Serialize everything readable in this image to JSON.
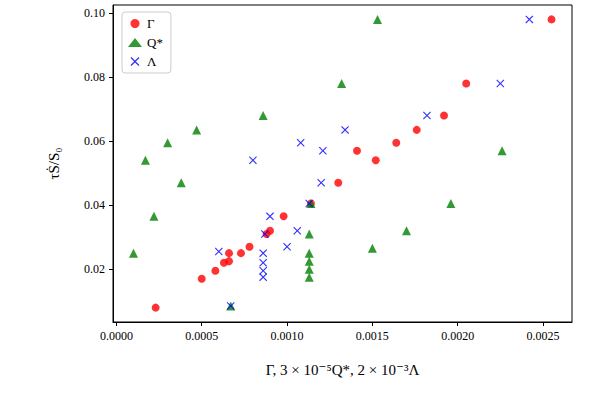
{
  "chart_data": {
    "type": "scatter",
    "x_label": "Γ, 3 × 10⁻⁵Q*, 2 × 10⁻³Λ",
    "y_label": "τṠ/S₀",
    "xlim": [
      -2e-05,
      0.00267
    ],
    "ylim": [
      0.0035,
      0.1025
    ],
    "xticks": [
      {
        "value": 0,
        "label": "0.0000"
      },
      {
        "value": 0.0005,
        "label": "0.0005"
      },
      {
        "value": 0.001,
        "label": "0.0010"
      },
      {
        "value": 0.0015,
        "label": "0.0015"
      },
      {
        "value": 0.002,
        "label": "0.0020"
      },
      {
        "value": 0.0025,
        "label": "0.0025"
      }
    ],
    "yticks": [
      0.02,
      0.04,
      0.06,
      0.08,
      {
        "value": 0.1,
        "label": "0.10"
      }
    ],
    "grid": false,
    "legend": "upper left",
    "series": [
      {
        "name": "Γ",
        "color": "#ff0000",
        "marker": "circle",
        "x": [
          0.00023,
          0.0005,
          0.00058,
          0.00063,
          0.00066,
          0.00066,
          0.00073,
          0.00078,
          0.00088,
          0.0009,
          0.00098,
          0.00114,
          0.0013,
          0.00141,
          0.00152,
          0.00164,
          0.00176,
          0.00192,
          0.00205,
          0.00255
        ],
        "values": [
          0.008,
          0.017,
          0.0195,
          0.022,
          0.025,
          0.0225,
          0.025,
          0.027,
          0.031,
          0.032,
          0.0365,
          0.0405,
          0.047,
          0.057,
          0.054,
          0.0595,
          0.0635,
          0.068,
          0.078,
          0.098
        ]
      },
      {
        "name": "Q*",
        "color": "#008000",
        "marker": "triangle",
        "x": [
          0.0001,
          0.00017,
          0.00022,
          0.0003,
          0.00038,
          0.00047,
          0.00067,
          0.00086,
          0.00113,
          0.00113,
          0.00113,
          0.00113,
          0.00113,
          0.00114,
          0.00132,
          0.0015,
          0.00153,
          0.0017,
          0.00196,
          0.00226
        ],
        "values": [
          0.025,
          0.054,
          0.0365,
          0.0595,
          0.047,
          0.0635,
          0.0085,
          0.068,
          0.031,
          0.025,
          0.0225,
          0.02,
          0.0175,
          0.0405,
          0.078,
          0.0265,
          0.098,
          0.032,
          0.0405,
          0.057
        ]
      },
      {
        "name": "Λ",
        "color": "#0000ff",
        "marker": "x",
        "x": [
          0.0006,
          0.00067,
          0.0008,
          0.00086,
          0.00086,
          0.00086,
          0.00086,
          0.00087,
          0.0009,
          0.001,
          0.00106,
          0.00108,
          0.00113,
          0.00121,
          0.0012,
          0.00134,
          0.00182,
          0.00225,
          0.00242
        ],
        "values": [
          0.0255,
          0.0085,
          0.054,
          0.025,
          0.022,
          0.0195,
          0.0175,
          0.031,
          0.0365,
          0.027,
          0.032,
          0.0595,
          0.0405,
          0.057,
          0.047,
          0.0635,
          0.068,
          0.078,
          0.098
        ]
      }
    ]
  }
}
